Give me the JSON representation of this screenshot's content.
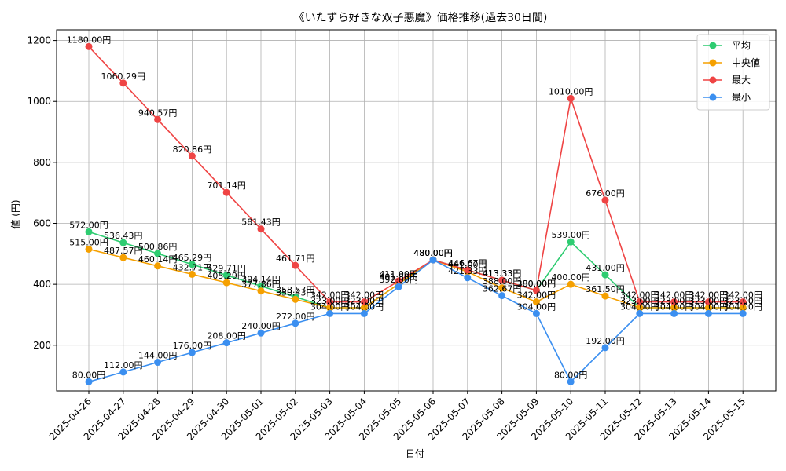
{
  "chart_data": {
    "type": "line",
    "title": "《いたずら好きな双子悪魔》価格推移(過去30日間)",
    "xlabel": "日付",
    "ylabel": "値 (円)",
    "ylim": [
      50,
      1235
    ],
    "yticks": [
      200,
      400,
      600,
      800,
      1000,
      1200
    ],
    "grid": true,
    "legend_position": "top-right",
    "value_suffix": "円",
    "categories": [
      "2025-04-26",
      "2025-04-27",
      "2025-04-28",
      "2025-04-29",
      "2025-04-30",
      "2025-05-01",
      "2025-05-02",
      "2025-05-03",
      "2025-05-04",
      "2025-05-05",
      "2025-05-06",
      "2025-05-07",
      "2025-05-08",
      "2025-05-09",
      "2025-05-10",
      "2025-05-11",
      "2025-05-12",
      "2025-05-13",
      "2025-05-14",
      "2025-05-15"
    ],
    "series": [
      {
        "name": "平均",
        "color": "#2ecc71",
        "values": [
          572.0,
          536.43,
          500.86,
          465.29,
          429.71,
          394.14,
          358.57,
          323.0,
          323.0,
          401.5,
          480.0,
          446.67,
          413.33,
          380.0,
          539.0,
          431.0,
          323.0,
          323.0,
          323.0,
          323.0
        ]
      },
      {
        "name": "中央値",
        "color": "#f5a000",
        "values": [
          515.0,
          487.57,
          460.14,
          432.71,
          405.29,
          377.86,
          350.43,
          323.0,
          323.0,
          401.5,
          480.0,
          441.0,
          388.0,
          342.0,
          400.0,
          361.5,
          323.0,
          323.0,
          323.0,
          323.0
        ]
      },
      {
        "name": "最大",
        "color": "#ef4444",
        "values": [
          1180.0,
          1060.29,
          940.57,
          820.86,
          701.14,
          581.43,
          461.71,
          342.0,
          342.0,
          411.0,
          480.0,
          446.67,
          413.33,
          380.0,
          1010.0,
          676.0,
          342.0,
          342.0,
          342.0,
          342.0
        ]
      },
      {
        "name": "最小",
        "color": "#3b8ff0",
        "values": [
          80.0,
          112.0,
          144.0,
          176.0,
          208.0,
          240.0,
          272.0,
          304.0,
          304.0,
          392.0,
          480.0,
          421.33,
          362.67,
          304.0,
          80.0,
          192.0,
          304.0,
          304.0,
          304.0,
          304.0
        ]
      }
    ]
  }
}
